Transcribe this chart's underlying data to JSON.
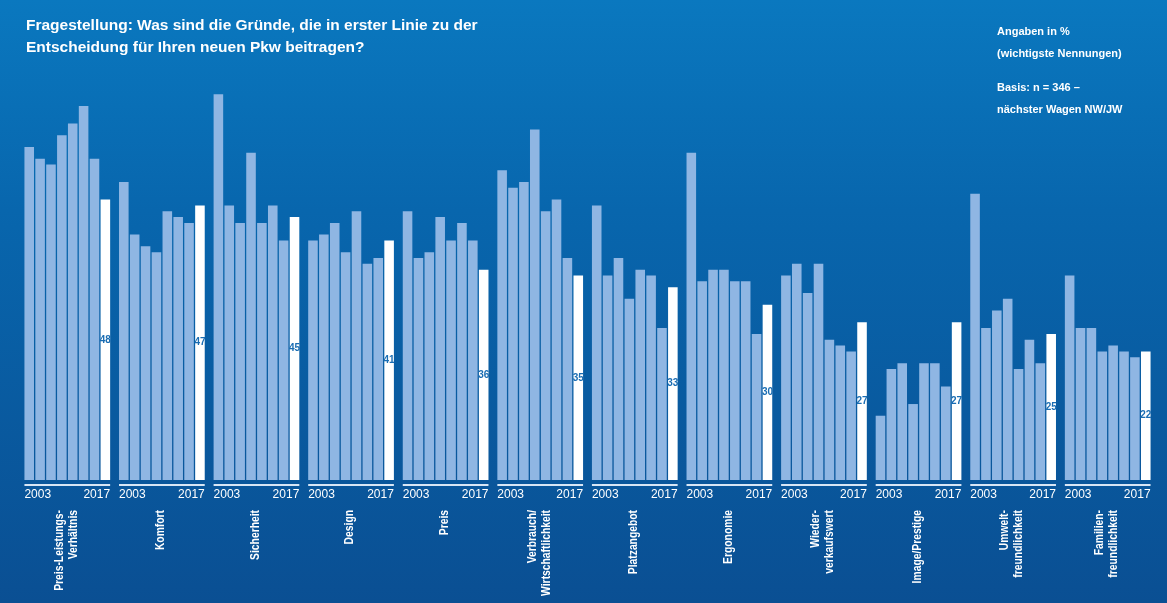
{
  "chart_data": {
    "type": "bar",
    "title": "Fragestellung: Was sind die Gründe, die in erster Linie zu der Entscheidung für Ihren neuen Pkw beitragen?",
    "annotations": [
      "Angaben in %",
      "(wichtigste Nennungen)",
      "Basis: n = 346 –",
      "nächster Wagen NW/JW"
    ],
    "categories": [
      "Preis-Leistungs- Verhältnis",
      "Komfort",
      "Sicherheit",
      "Design",
      "Preis",
      "Verbrauch/ Wirtschaftlichkeit",
      "Platzangebot",
      "Ergonomie",
      "Wieder- verkaufswert",
      "Image/Prestige",
      "Umwelt- freundlichkeit",
      "Familien- freundlichkeit"
    ],
    "series": [
      {
        "name": "2003",
        "color": "#8fb6e3",
        "values": [
          57,
          51,
          66,
          41,
          46,
          53,
          47,
          56,
          35,
          11,
          49,
          35
        ]
      },
      {
        "color": "#8fb6e3",
        "values": [
          55,
          42,
          47,
          42,
          38,
          50,
          35,
          34,
          37,
          19,
          26,
          26
        ]
      },
      {
        "color": "#8fb6e3",
        "values": [
          54,
          40,
          44,
          44,
          39,
          51,
          38,
          36,
          32,
          20,
          29,
          26
        ]
      },
      {
        "color": "#8fb6e3",
        "values": [
          59,
          39,
          56,
          39,
          45,
          60,
          31,
          36,
          37,
          13,
          31,
          22
        ]
      },
      {
        "color": "#8fb6e3",
        "values": [
          61,
          46,
          44,
          46,
          41,
          46,
          36,
          34,
          24,
          20,
          19,
          23
        ]
      },
      {
        "color": "#8fb6e3",
        "values": [
          64,
          45,
          47,
          37,
          44,
          48,
          35,
          34,
          23,
          20,
          24,
          22
        ]
      },
      {
        "color": "#8fb6e3",
        "values": [
          55,
          44,
          41,
          38,
          41,
          38,
          26,
          25,
          22,
          16,
          20,
          21
        ]
      },
      {
        "name": "2017",
        "color": "#ffffff",
        "values": [
          48,
          47,
          45,
          41,
          36,
          35,
          33,
          30,
          27,
          27,
          25,
          22
        ],
        "value_labels": [
          "48",
          "47",
          "45",
          "41",
          "36",
          "35",
          "33",
          "30",
          "27",
          "27",
          "25",
          "22"
        ]
      }
    ]
  }
}
